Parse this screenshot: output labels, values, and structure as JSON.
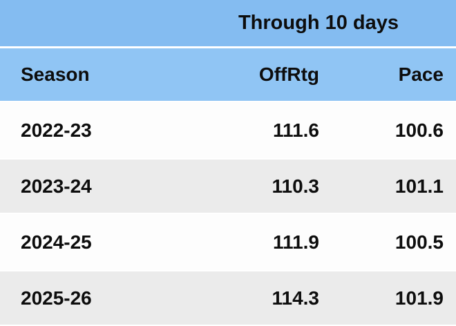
{
  "chart_data": {
    "type": "table",
    "title": "Through 10 days",
    "columns": [
      "Season",
      "OffRtg",
      "Pace"
    ],
    "rows": [
      [
        "2022-23",
        "111.6",
        "100.6"
      ],
      [
        "2023-24",
        "110.3",
        "101.1"
      ],
      [
        "2024-25",
        "111.9",
        "100.5"
      ],
      [
        "2025-26",
        "114.3",
        "101.9"
      ]
    ]
  },
  "colors": {
    "header_top_bg": "#84bcf1",
    "header_cols_bg": "#90c5f4",
    "row_even_bg": "#fdfdfd",
    "row_odd_bg": "#ebebeb",
    "text": "#0d0d0d"
  }
}
